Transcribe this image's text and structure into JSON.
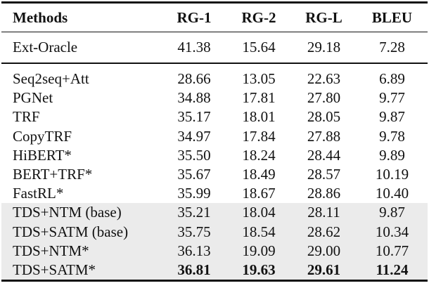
{
  "table": {
    "columns": [
      "Methods",
      "RG-1",
      "RG-2",
      "RG-L",
      "BLEU"
    ],
    "rows": [
      [
        "Ext-Oracle",
        "41.38",
        "15.64",
        "29.18",
        "7.28"
      ],
      [
        "Seq2seq+Att",
        "28.66",
        "13.05",
        "22.63",
        "6.89"
      ],
      [
        "PGNet",
        "34.88",
        "17.81",
        "27.80",
        "9.77"
      ],
      [
        "TRF",
        "35.17",
        "18.01",
        "28.05",
        "9.87"
      ],
      [
        "CopyTRF",
        "34.97",
        "17.84",
        "27.88",
        "9.78"
      ],
      [
        "HiBERT*",
        "35.50",
        "18.24",
        "28.44",
        "9.89"
      ],
      [
        "BERT+TRF*",
        "35.67",
        "18.49",
        "28.57",
        "10.19"
      ],
      [
        "FastRL*",
        "35.99",
        "18.67",
        "28.86",
        "10.40"
      ],
      [
        "TDS+NTM (base)",
        "35.21",
        "18.04",
        "28.11",
        "9.87"
      ],
      [
        "TDS+SATM (base)",
        "35.75",
        "18.54",
        "28.62",
        "10.34"
      ],
      [
        "TDS+NTM*",
        "36.13",
        "19.09",
        "29.00",
        "10.77"
      ],
      [
        "TDS+SATM*",
        "36.81",
        "19.63",
        "29.61",
        "11.24"
      ]
    ]
  }
}
